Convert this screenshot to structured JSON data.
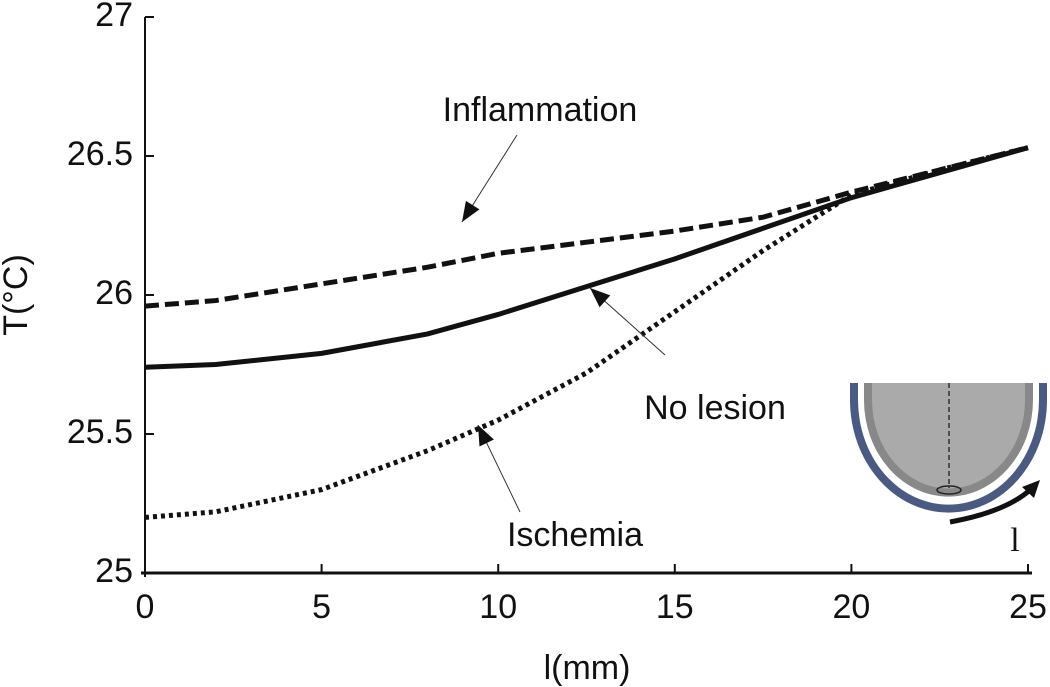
{
  "chart_data": {
    "type": "line",
    "x_label": "l(mm)",
    "y_label": "T(°C)",
    "x": [
      0,
      2,
      5,
      8,
      10,
      12.5,
      15,
      17.5,
      20,
      22.5,
      25
    ],
    "series": [
      {
        "name": "Inflammation",
        "color": "#111111",
        "linestyle": "dashed",
        "values": [
          25.96,
          25.98,
          26.04,
          26.1,
          26.15,
          26.19,
          26.23,
          26.28,
          26.37,
          26.45,
          26.53
        ]
      },
      {
        "name": "No lesion",
        "color": "#111111",
        "linestyle": "solid",
        "values": [
          25.74,
          25.75,
          25.79,
          25.86,
          25.93,
          26.03,
          26.13,
          26.24,
          26.35,
          26.44,
          26.53
        ]
      },
      {
        "name": "Ischemia",
        "color": "#111111",
        "linestyle": "dotted",
        "values": [
          25.2,
          25.22,
          25.3,
          25.44,
          25.55,
          25.72,
          25.94,
          26.16,
          26.36,
          26.45,
          26.53
        ]
      }
    ],
    "xlim": [
      0,
      25
    ],
    "xticks": [
      0,
      5,
      10,
      15,
      20,
      25
    ],
    "ylim": [
      25,
      27
    ],
    "yticks": [
      25,
      25.5,
      26,
      26.5,
      27
    ],
    "grid": false,
    "inset_label": "l"
  }
}
